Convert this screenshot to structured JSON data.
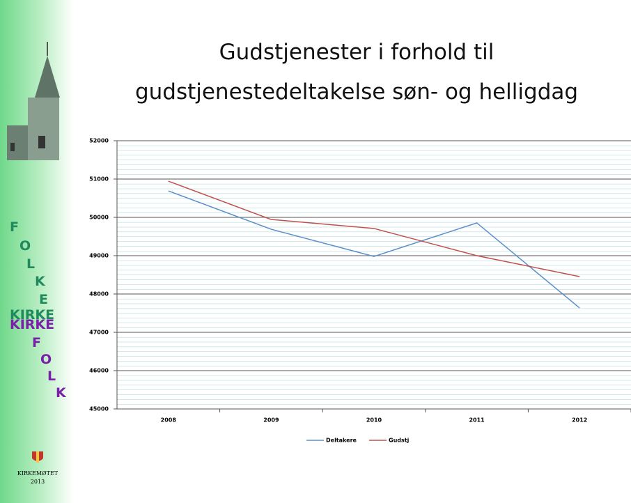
{
  "chart_data": {
    "type": "line",
    "title": [
      "Gudstjenester  i forhold til",
      "gudstjenestedeltakelse  søn- og helligdag"
    ],
    "categories": [
      "2008",
      "2009",
      "2010",
      "2011",
      "2012"
    ],
    "series": [
      {
        "name": "Deltakere",
        "color": "#5b8fc9",
        "values": [
          50690,
          49690,
          48980,
          49855,
          47636
        ]
      },
      {
        "name": "Gudstj",
        "color": "#c0504d",
        "values": [
          50945,
          49945,
          49710,
          49000,
          48455
        ]
      }
    ],
    "ylim": [
      45000,
      52000
    ],
    "yticks": [
      45000,
      46000,
      47000,
      48000,
      49000,
      50000,
      51000,
      52000
    ],
    "grid": true,
    "legend": "bottom"
  },
  "sidebar": {
    "folke": [
      "F",
      "O",
      "L",
      "K",
      "E"
    ],
    "kirke_green": "KIRKE",
    "kirke_purple": "KIRKE",
    "folk": [
      "F",
      "O",
      "L",
      "K"
    ],
    "logo_name": "KIRKEMØTET",
    "logo_year": "2013"
  }
}
